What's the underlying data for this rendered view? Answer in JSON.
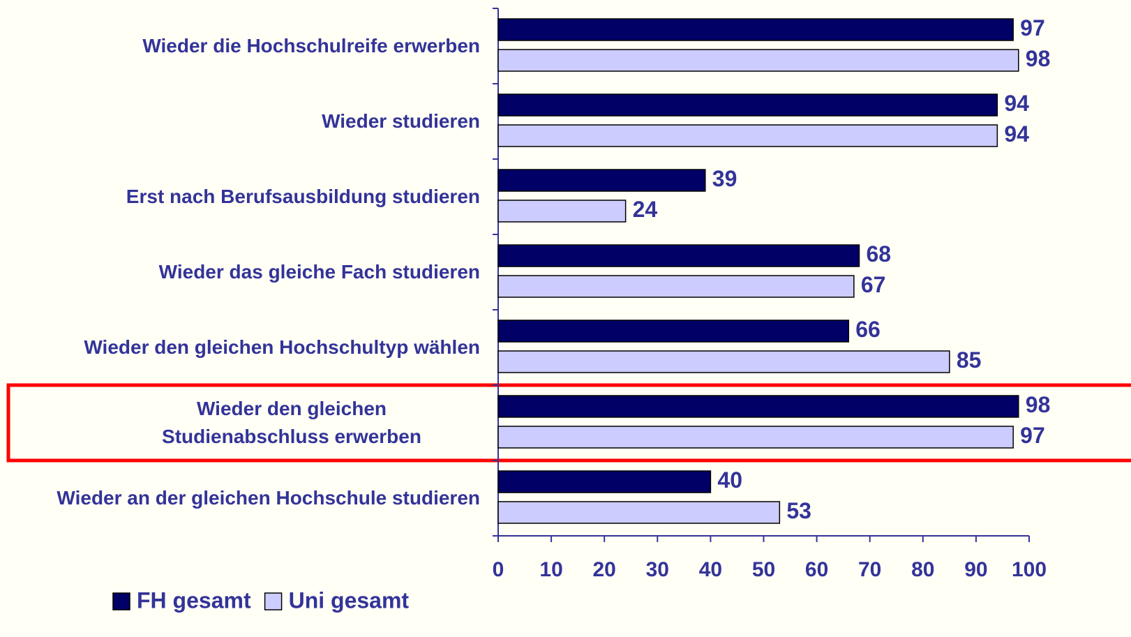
{
  "chart_data": {
    "type": "hbar",
    "categories": [
      "Wieder die Hochschulreife erwerben",
      "Wieder studieren",
      "Erst nach Berufsausbildung studieren",
      "Wieder das gleiche Fach studieren",
      "Wieder den gleichen Hochschultyp wählen",
      "Wieder den gleichen Studienabschluss erwerben",
      "Wieder an der gleichen Hochschule studieren"
    ],
    "series": [
      {
        "name": "FH gesamt",
        "color": "#000066",
        "values": [
          97,
          94,
          39,
          68,
          66,
          98,
          40
        ]
      },
      {
        "name": "Uni gesamt",
        "color": "#ccccff",
        "values": [
          98,
          94,
          24,
          67,
          85,
          97,
          53
        ]
      }
    ],
    "xlim": [
      0,
      100
    ],
    "xticks": [
      0,
      10,
      20,
      30,
      40,
      50,
      60,
      70,
      80,
      90,
      100
    ],
    "highlight": 5,
    "highlight_color": "#ff0000",
    "legend": "bottom-left"
  }
}
